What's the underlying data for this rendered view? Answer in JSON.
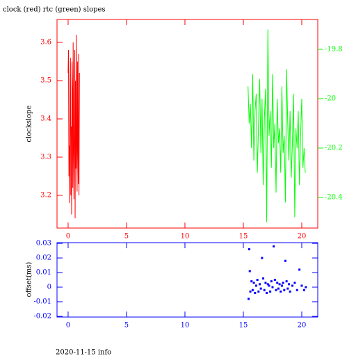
{
  "chart_data": [
    {
      "type": "line",
      "title": "clock (red) rtc (green) slopes",
      "ylabel": "clockslope",
      "xlim": [
        -0.95,
        21.37
      ],
      "xticks": [
        0,
        5,
        10,
        15,
        20
      ],
      "ylim": [
        3.1145,
        3.66
      ],
      "yticks": [
        3.2,
        3.3,
        3.4,
        3.5,
        3.6
      ],
      "y2lim": [
        -20.524,
        -19.679
      ],
      "y2ticks": [
        -20.4,
        -20.2,
        -20,
        -19.8
      ],
      "series": [
        {
          "color": "#ff0000",
          "x": [
            0.0,
            0.03,
            0.07,
            0.1,
            0.13,
            0.17,
            0.2,
            0.23,
            0.27,
            0.3,
            0.33,
            0.37,
            0.4,
            0.43,
            0.47,
            0.5,
            0.53,
            0.57,
            0.6,
            0.63,
            0.67,
            0.7,
            0.73,
            0.77,
            0.8,
            0.83,
            0.87,
            0.9,
            0.93,
            0.97
          ],
          "values": [
            3.52,
            3.58,
            3.25,
            3.33,
            3.18,
            3.5,
            3.56,
            3.2,
            3.38,
            3.15,
            3.55,
            3.45,
            3.22,
            3.6,
            3.3,
            3.19,
            3.36,
            3.58,
            3.14,
            3.5,
            3.27,
            3.62,
            3.35,
            3.21,
            3.55,
            3.34,
            3.23,
            3.57,
            3.2,
            3.52
          ]
        },
        {
          "color": "#00ff00",
          "axis": "y2",
          "x": [
            15.4,
            15.5,
            15.6,
            15.7,
            15.8,
            15.9,
            16.0,
            16.1,
            16.2,
            16.3,
            16.4,
            16.5,
            16.6,
            16.7,
            16.8,
            16.9,
            17.0,
            17.1,
            17.2,
            17.3,
            17.4,
            17.5,
            17.6,
            17.7,
            17.8,
            17.9,
            18.0,
            18.1,
            18.2,
            18.3,
            18.4,
            18.5,
            18.6,
            18.7,
            18.8,
            18.9,
            19.0,
            19.1,
            19.2,
            19.3,
            19.4,
            19.5,
            19.6,
            19.7,
            19.8,
            19.9,
            20.0,
            20.1,
            20.2,
            20.3
          ],
          "values": [
            -19.95,
            -20.1,
            -20.02,
            -20.2,
            -19.9,
            -20.25,
            -20.05,
            -19.98,
            -20.3,
            -20.1,
            -19.92,
            -20.22,
            -20.0,
            -20.35,
            -20.08,
            -19.96,
            -20.5,
            -19.72,
            -20.15,
            -20.05,
            -20.28,
            -19.9,
            -20.2,
            -20.1,
            -20.38,
            -20.0,
            -20.18,
            -20.12,
            -20.3,
            -19.95,
            -20.22,
            -20.15,
            -20.42,
            -19.88,
            -20.1,
            -20.25,
            -20.05,
            -20.32,
            -20.18,
            -19.98,
            -20.48,
            -20.12,
            -20.2,
            -20.05,
            -20.35,
            -20.15,
            -20.0,
            -20.28,
            -20.2,
            -20.3
          ]
        }
      ]
    },
    {
      "type": "scatter",
      "ylabel": "offset(ms)",
      "xlim": [
        -0.95,
        21.37
      ],
      "xticks": [
        0,
        5,
        10,
        15,
        20
      ],
      "ylim": [
        -0.0205,
        0.0305
      ],
      "yticks": [
        -0.02,
        -0.01,
        0,
        0.01,
        0.02,
        0.03
      ],
      "series": [
        {
          "color": "#0000ff",
          "x": [
            15.45,
            15.5,
            15.55,
            15.6,
            15.7,
            15.8,
            15.9,
            16.0,
            16.1,
            16.2,
            16.3,
            16.4,
            16.5,
            16.6,
            16.7,
            16.8,
            16.9,
            17.0,
            17.1,
            17.2,
            17.3,
            17.4,
            17.5,
            17.6,
            17.7,
            17.8,
            17.9,
            18.0,
            18.1,
            18.2,
            18.3,
            18.4,
            18.5,
            18.6,
            18.7,
            18.8,
            18.9,
            19.0,
            19.2,
            19.4,
            19.6,
            19.8,
            20.0,
            20.2,
            20.35
          ],
          "values": [
            -0.008,
            0.026,
            0.011,
            -0.003,
            0.004,
            -0.002,
            0.003,
            -0.004,
            0.001,
            0.005,
            -0.003,
            0.002,
            -0.001,
            0.02,
            0.006,
            -0.002,
            0.003,
            -0.004,
            0.002,
            0.001,
            -0.003,
            0.004,
            0.0,
            0.028,
            0.005,
            -0.002,
            0.003,
            -0.001,
            0.002,
            -0.003,
            0.001,
            0.003,
            -0.002,
            0.018,
            0.004,
            -0.001,
            0.002,
            -0.003,
            0.001,
            0.003,
            -0.002,
            0.012,
            0.001,
            -0.002,
            0.0
          ]
        }
      ]
    }
  ],
  "footer": "2020-11-15 info"
}
